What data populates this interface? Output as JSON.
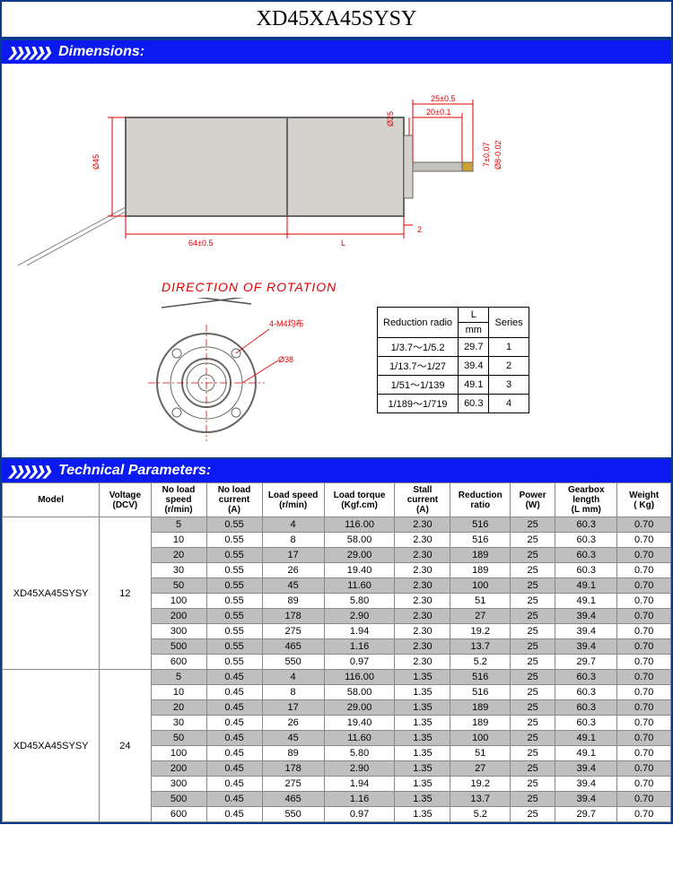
{
  "title": "XD45XA45SYSY",
  "sections": {
    "dimensions": "Dimensions:",
    "parameters": "Technical Parameters:"
  },
  "rotation_text": "DIRECTION OF ROTATION",
  "side_dims": {
    "phi45": "Ø45",
    "len64": "64±0.5",
    "L": "L",
    "two": "2",
    "phi25": "Ø25",
    "top25": "25±0.5",
    "top20": "20±0.1",
    "r7": "7±0.07",
    "r8": "Ø8-0.02"
  },
  "face_dims": {
    "m4": "4-M4均布",
    "phi38": "Ø38"
  },
  "mini_table": {
    "headers": [
      "Reduction radio",
      "L",
      "mm",
      "Series"
    ],
    "rows": [
      [
        "1/3.7～1/5.2",
        "29.7",
        "1"
      ],
      [
        "1/13.7～1/27",
        "39.4",
        "2"
      ],
      [
        "1/51～1/139",
        "49.1",
        "3"
      ],
      [
        "1/189～1/719",
        "60.3",
        "4"
      ]
    ]
  },
  "param_headers": [
    "Model",
    "Voltage\n(DCV)",
    "No load speed\n(r/min)",
    "No load current\n(A)",
    "Load speed\n(r/min)",
    "Load torque\n(Kgf.cm)",
    "Stall current\n(A)",
    "Reduction ratio",
    "Power\n(W)",
    "Gearbox length\n(L  mm)",
    "Weight\n( Kg)"
  ],
  "param_groups": [
    {
      "model": "XD45XA45SYSY",
      "voltage": "12",
      "rows": [
        [
          "5",
          "0.55",
          "4",
          "116.00",
          "2.30",
          "516",
          "25",
          "60.3",
          "0.70"
        ],
        [
          "10",
          "0.55",
          "8",
          "58.00",
          "2.30",
          "516",
          "25",
          "60.3",
          "0.70"
        ],
        [
          "20",
          "0.55",
          "17",
          "29.00",
          "2.30",
          "189",
          "25",
          "60.3",
          "0.70"
        ],
        [
          "30",
          "0.55",
          "26",
          "19.40",
          "2.30",
          "189",
          "25",
          "60.3",
          "0.70"
        ],
        [
          "50",
          "0.55",
          "45",
          "11.60",
          "2.30",
          "100",
          "25",
          "49.1",
          "0.70"
        ],
        [
          "100",
          "0.55",
          "89",
          "5.80",
          "2.30",
          "51",
          "25",
          "49.1",
          "0.70"
        ],
        [
          "200",
          "0.55",
          "178",
          "2.90",
          "2.30",
          "27",
          "25",
          "39.4",
          "0.70"
        ],
        [
          "300",
          "0.55",
          "275",
          "1.94",
          "2.30",
          "19.2",
          "25",
          "39.4",
          "0.70"
        ],
        [
          "500",
          "0.55",
          "465",
          "1.16",
          "2.30",
          "13.7",
          "25",
          "39.4",
          "0.70"
        ],
        [
          "600",
          "0.55",
          "550",
          "0.97",
          "2.30",
          "5.2",
          "25",
          "29.7",
          "0.70"
        ]
      ]
    },
    {
      "model": "XD45XA45SYSY",
      "voltage": "24",
      "rows": [
        [
          "5",
          "0.45",
          "4",
          "116.00",
          "1.35",
          "516",
          "25",
          "60.3",
          "0.70"
        ],
        [
          "10",
          "0.45",
          "8",
          "58.00",
          "1.35",
          "516",
          "25",
          "60.3",
          "0.70"
        ],
        [
          "20",
          "0.45",
          "17",
          "29.00",
          "1.35",
          "189",
          "25",
          "60.3",
          "0.70"
        ],
        [
          "30",
          "0.45",
          "26",
          "19.40",
          "1.35",
          "189",
          "25",
          "60.3",
          "0.70"
        ],
        [
          "50",
          "0.45",
          "45",
          "11.60",
          "1.35",
          "100",
          "25",
          "49.1",
          "0.70"
        ],
        [
          "100",
          "0.45",
          "89",
          "5.80",
          "1.35",
          "51",
          "25",
          "49.1",
          "0.70"
        ],
        [
          "200",
          "0.45",
          "178",
          "2.90",
          "1.35",
          "27",
          "25",
          "39.4",
          "0.70"
        ],
        [
          "300",
          "0.45",
          "275",
          "1.94",
          "1.35",
          "19.2",
          "25",
          "39.4",
          "0.70"
        ],
        [
          "500",
          "0.45",
          "465",
          "1.16",
          "1.35",
          "13.7",
          "25",
          "39.4",
          "0.70"
        ],
        [
          "600",
          "0.45",
          "550",
          "0.97",
          "1.35",
          "5.2",
          "25",
          "29.7",
          "0.70"
        ]
      ]
    }
  ],
  "colors": {
    "blue_header": "#0a1af0",
    "border_blue": "#0a3a8a",
    "dim_red": "#d00000",
    "shade_gray": "#bfbfbf",
    "body_gray": "#d5d2ce"
  }
}
